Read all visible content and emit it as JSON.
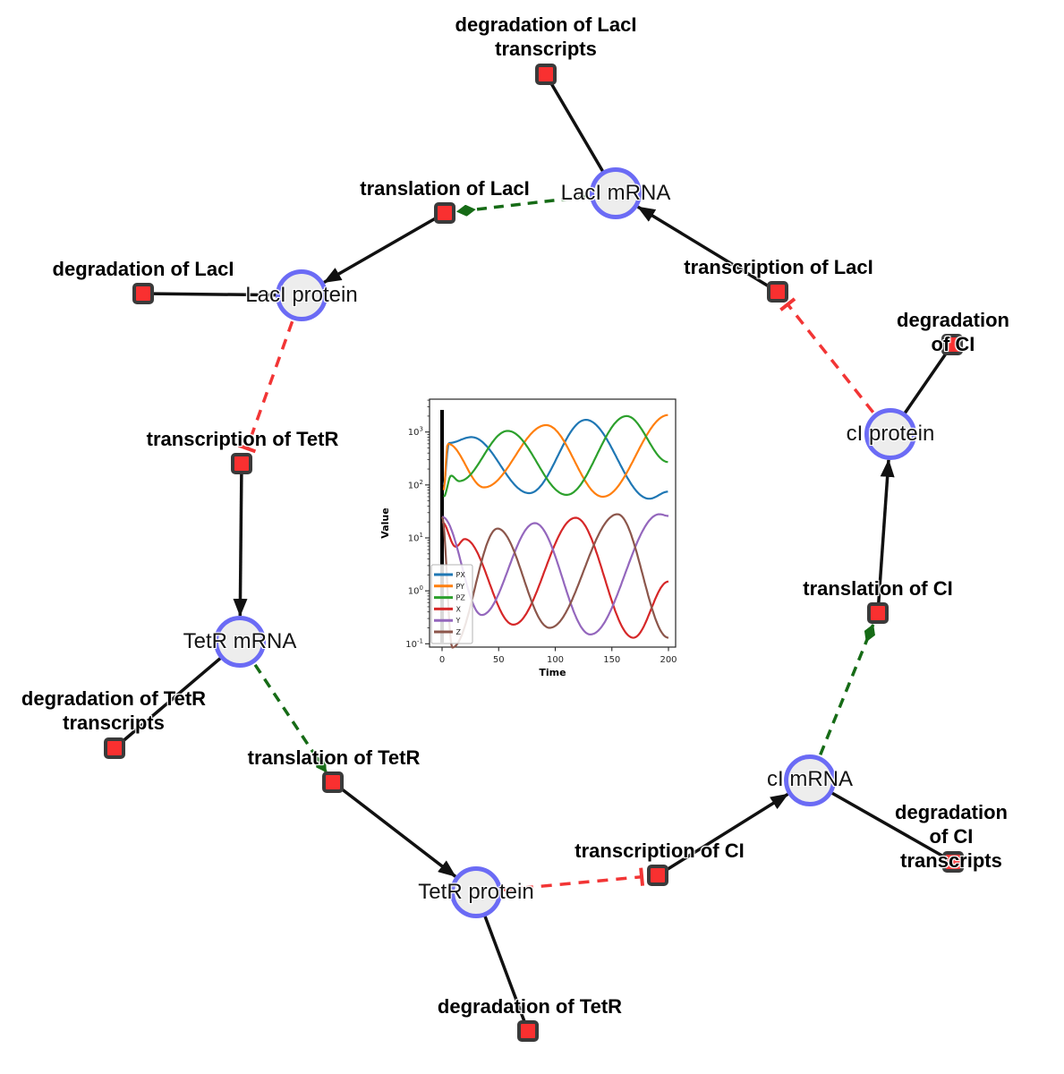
{
  "diagram": {
    "species": [
      {
        "label": "LacI mRNA"
      },
      {
        "label": "LacI protein"
      },
      {
        "label": "TetR mRNA"
      },
      {
        "label": "TetR protein"
      },
      {
        "label": "cI mRNA"
      },
      {
        "label": "cI protein"
      }
    ],
    "reactions": [
      {
        "label": "degradation of LacI\ntranscripts"
      },
      {
        "label": "translation of LacI"
      },
      {
        "label": "degradation of LacI"
      },
      {
        "label": "transcription of LacI"
      },
      {
        "label": "degradation of CI"
      },
      {
        "label": "transcription of TetR"
      },
      {
        "label": "degradation of TetR\ntranscripts"
      },
      {
        "label": "translation of TetR"
      },
      {
        "label": "translation of CI"
      },
      {
        "label": "transcription of CI"
      },
      {
        "label": "degradation of CI\ntranscripts"
      },
      {
        "label": "degradation of TetR"
      }
    ],
    "colors": {
      "species_fill": "#ededed",
      "species_border": "#6b6bf5",
      "reaction_fill": "#f93030",
      "reaction_border": "#3a3a3a",
      "edge": "#111111",
      "activation": "#166b16",
      "inhibition": "#f23535"
    }
  },
  "chart_data": {
    "type": "line",
    "title": "",
    "xlabel": "Time",
    "ylabel": "Value",
    "yscale": "log",
    "xlim": [
      -11,
      206
    ],
    "ylim": [
      0.086,
      4200
    ],
    "x_ticks": [
      0,
      50,
      100,
      150,
      200
    ],
    "y_tick_exponents": [
      3,
      2,
      1,
      0,
      -1
    ],
    "vline_x": 0,
    "legend_position": "lower left",
    "series": [
      {
        "name": "PX",
        "color": "#1f77b4",
        "keyframes": [
          [
            1.5,
            100
          ],
          [
            6,
            620
          ],
          [
            26,
            800
          ],
          [
            77,
            70
          ],
          [
            127,
            1700
          ],
          [
            183,
            55
          ],
          [
            200,
            75
          ]
        ]
      },
      {
        "name": "PY",
        "color": "#ff7f0e",
        "keyframes": [
          [
            1.5,
            80
          ],
          [
            5,
            600
          ],
          [
            37,
            90
          ],
          [
            92,
            1350
          ],
          [
            142,
            60
          ],
          [
            200,
            2100
          ]
        ]
      },
      {
        "name": "PZ",
        "color": "#2ca02c",
        "keyframes": [
          [
            1.5,
            60
          ],
          [
            8,
            150
          ],
          [
            15,
            118
          ],
          [
            58,
            1050
          ],
          [
            110,
            65
          ],
          [
            163,
            2000
          ],
          [
            200,
            270
          ]
        ]
      },
      {
        "name": "X",
        "color": "#d62728",
        "keyframes": [
          [
            0,
            20
          ],
          [
            12,
            6.8
          ],
          [
            20,
            9.5
          ],
          [
            63,
            0.23
          ],
          [
            118,
            24
          ],
          [
            169,
            0.13
          ],
          [
            200,
            1.5
          ]
        ]
      },
      {
        "name": "Y",
        "color": "#9467bd",
        "keyframes": [
          [
            0,
            25
          ],
          [
            35,
            0.35
          ],
          [
            82,
            19
          ],
          [
            131,
            0.15
          ],
          [
            192,
            28
          ],
          [
            200,
            26
          ]
        ]
      },
      {
        "name": "Z",
        "color": "#8c564b",
        "keyframes": [
          [
            0,
            25
          ],
          [
            9,
            0.085
          ],
          [
            49,
            15
          ],
          [
            95,
            0.2
          ],
          [
            155,
            28
          ],
          [
            200,
            0.13
          ]
        ]
      }
    ]
  }
}
